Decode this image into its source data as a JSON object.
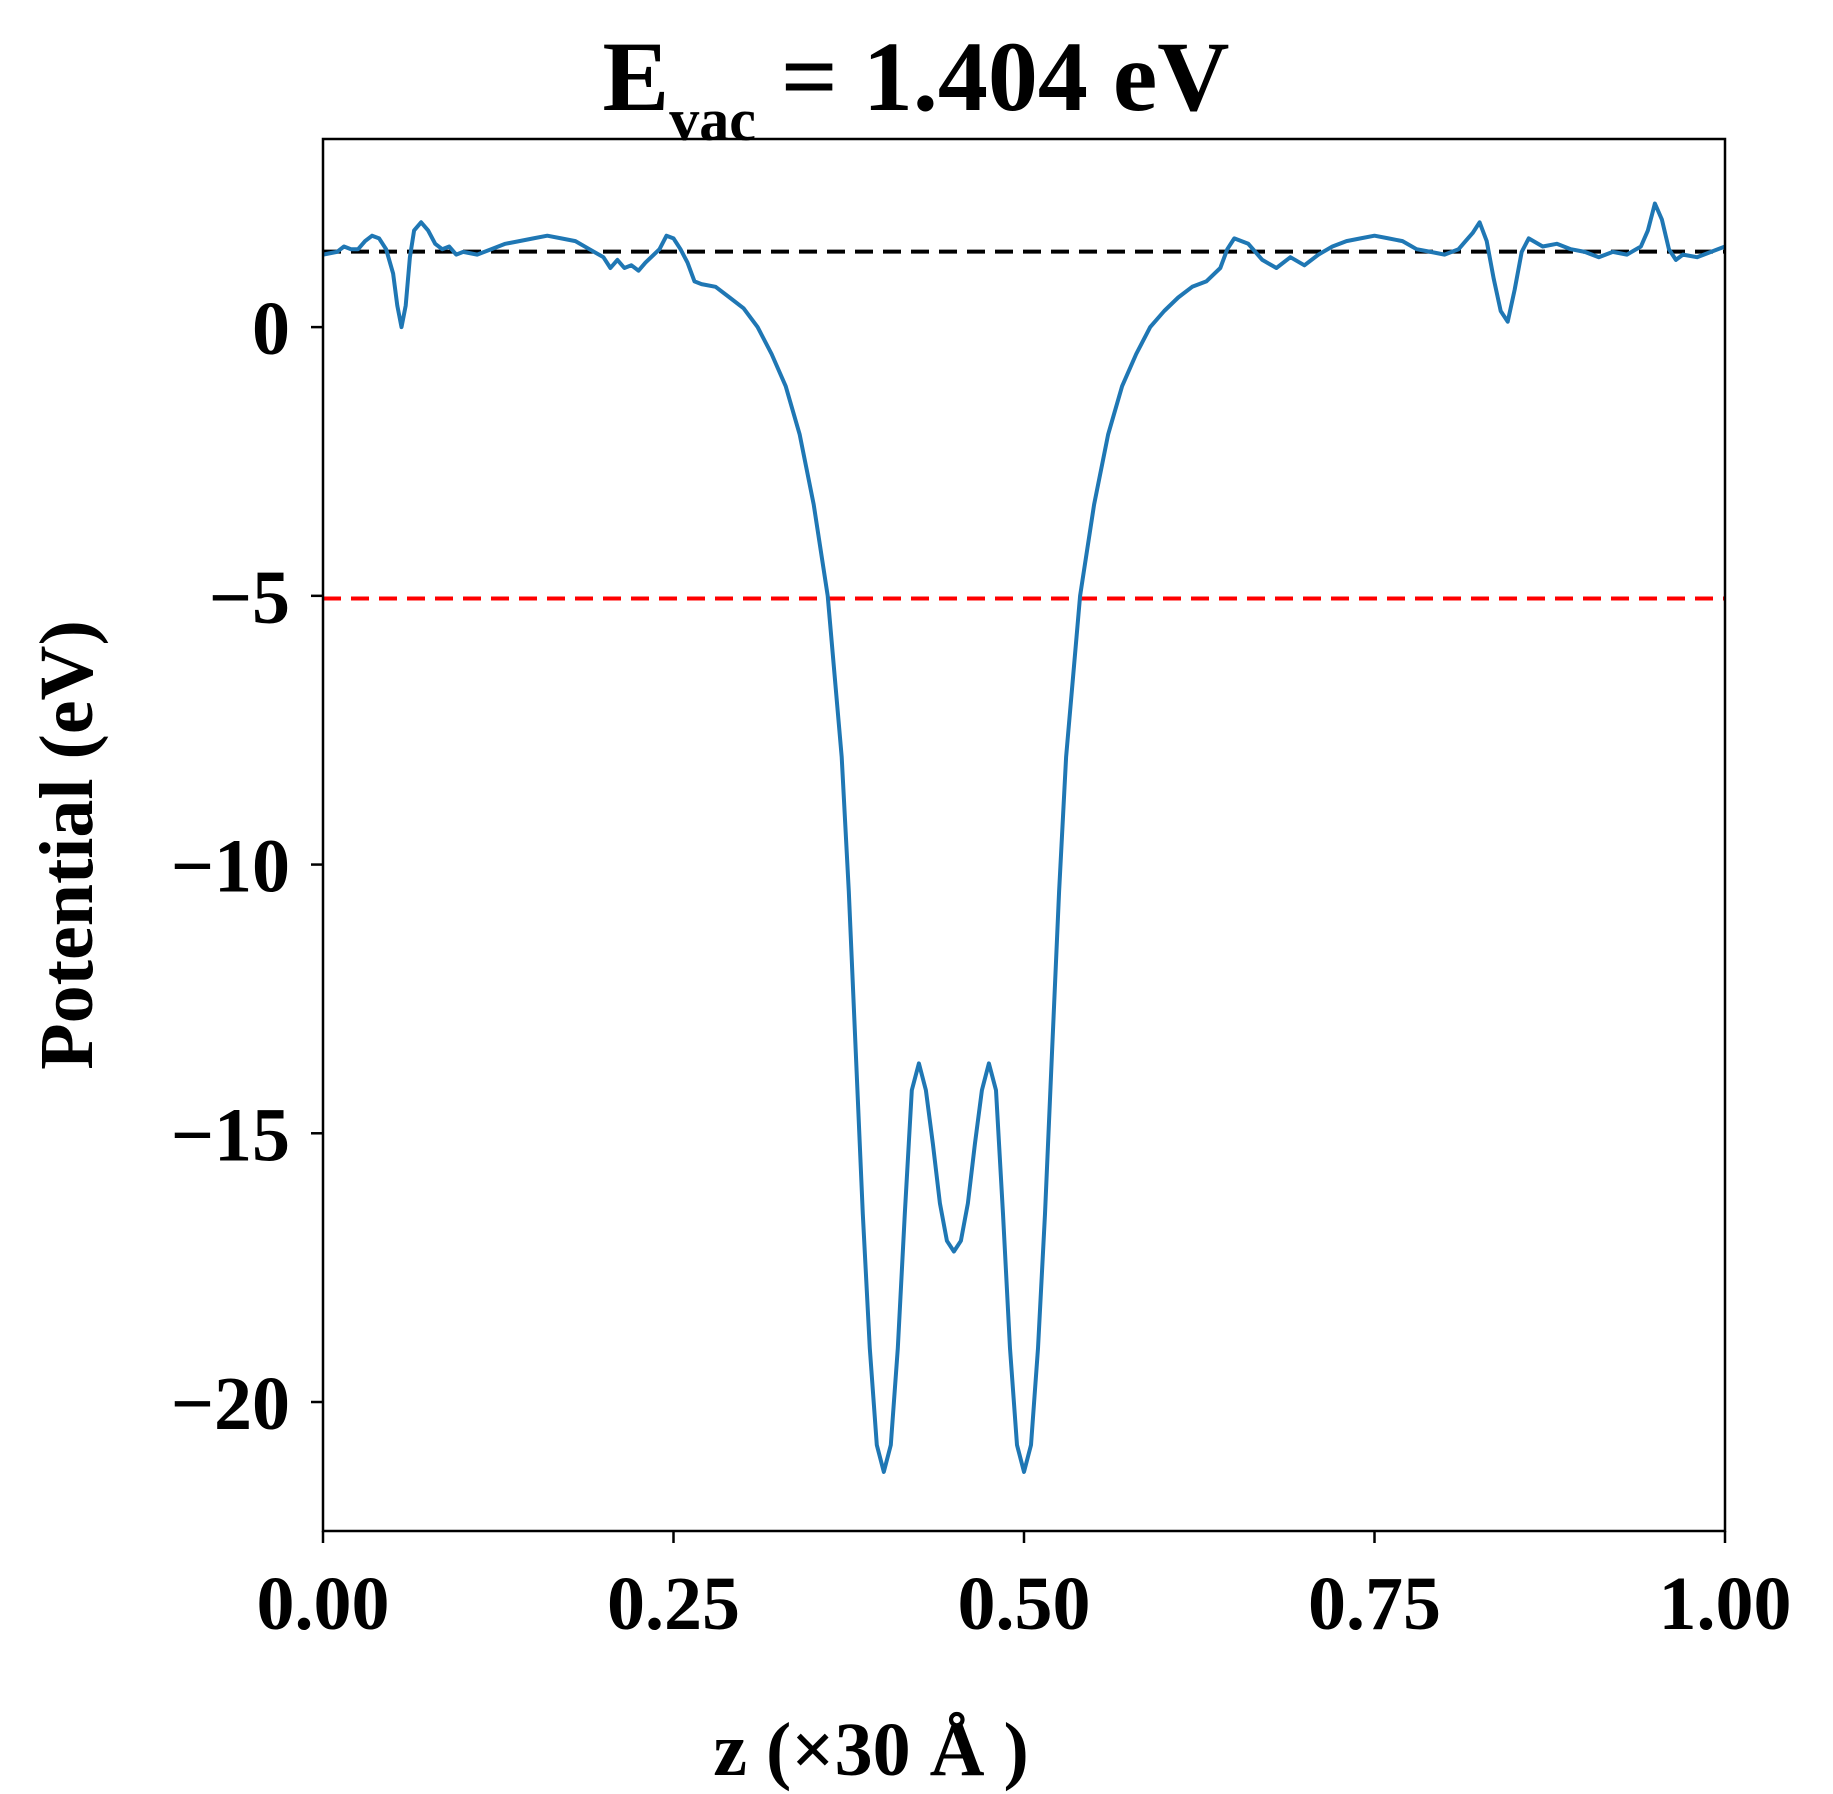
{
  "chart_data": {
    "type": "line",
    "title_prefix": "E",
    "title_subscript": "vac",
    "title_suffix": " = 1.404 eV",
    "xlabel": "z (×30 Å )",
    "ylabel": "Potential (eV)",
    "xlim": [
      0.0,
      1.0
    ],
    "ylim": [
      -22.4,
      3.5
    ],
    "xticks": [
      {
        "value": 0.0,
        "label": "0.00"
      },
      {
        "value": 0.25,
        "label": "0.25"
      },
      {
        "value": 0.5,
        "label": "0.50"
      },
      {
        "value": 0.75,
        "label": "0.75"
      },
      {
        "value": 1.0,
        "label": "1.00"
      }
    ],
    "yticks": [
      {
        "value": 0,
        "label": "0"
      },
      {
        "value": -5,
        "label": "−5"
      },
      {
        "value": -10,
        "label": "−10"
      },
      {
        "value": -15,
        "label": "−15"
      },
      {
        "value": -20,
        "label": "−20"
      }
    ],
    "grid": false,
    "reference_lines": [
      {
        "y": 1.404,
        "color": "#000000",
        "style": "dashed"
      },
      {
        "y": -5.05,
        "color": "#ff0000",
        "style": "dashed"
      }
    ],
    "series": [
      {
        "color": "#1f77b4",
        "points": [
          [
            0.0,
            1.35
          ],
          [
            0.01,
            1.4
          ],
          [
            0.015,
            1.5
          ],
          [
            0.02,
            1.45
          ],
          [
            0.025,
            1.45
          ],
          [
            0.03,
            1.6
          ],
          [
            0.035,
            1.7
          ],
          [
            0.04,
            1.65
          ],
          [
            0.045,
            1.45
          ],
          [
            0.05,
            1.0
          ],
          [
            0.053,
            0.4
          ],
          [
            0.056,
            0.0
          ],
          [
            0.059,
            0.4
          ],
          [
            0.062,
            1.3
          ],
          [
            0.065,
            1.8
          ],
          [
            0.07,
            1.95
          ],
          [
            0.075,
            1.8
          ],
          [
            0.08,
            1.55
          ],
          [
            0.085,
            1.45
          ],
          [
            0.09,
            1.5
          ],
          [
            0.095,
            1.35
          ],
          [
            0.1,
            1.4
          ],
          [
            0.11,
            1.35
          ],
          [
            0.12,
            1.45
          ],
          [
            0.13,
            1.55
          ],
          [
            0.14,
            1.6
          ],
          [
            0.15,
            1.65
          ],
          [
            0.16,
            1.7
          ],
          [
            0.17,
            1.65
          ],
          [
            0.18,
            1.6
          ],
          [
            0.19,
            1.45
          ],
          [
            0.2,
            1.3
          ],
          [
            0.205,
            1.1
          ],
          [
            0.21,
            1.25
          ],
          [
            0.215,
            1.1
          ],
          [
            0.22,
            1.15
          ],
          [
            0.225,
            1.05
          ],
          [
            0.23,
            1.2
          ],
          [
            0.24,
            1.45
          ],
          [
            0.245,
            1.7
          ],
          [
            0.25,
            1.65
          ],
          [
            0.255,
            1.45
          ],
          [
            0.26,
            1.2
          ],
          [
            0.265,
            0.85
          ],
          [
            0.27,
            0.8
          ],
          [
            0.28,
            0.75
          ],
          [
            0.29,
            0.55
          ],
          [
            0.3,
            0.35
          ],
          [
            0.31,
            0.0
          ],
          [
            0.32,
            -0.5
          ],
          [
            0.33,
            -1.1
          ],
          [
            0.34,
            -2.0
          ],
          [
            0.35,
            -3.3
          ],
          [
            0.36,
            -5.0
          ],
          [
            0.37,
            -8.0
          ],
          [
            0.375,
            -10.5
          ],
          [
            0.38,
            -13.5
          ],
          [
            0.385,
            -16.5
          ],
          [
            0.39,
            -19.0
          ],
          [
            0.395,
            -20.8
          ],
          [
            0.4,
            -21.3
          ],
          [
            0.405,
            -20.8
          ],
          [
            0.41,
            -19.0
          ],
          [
            0.415,
            -16.5
          ],
          [
            0.42,
            -14.2
          ],
          [
            0.425,
            -13.7
          ],
          [
            0.43,
            -14.2
          ],
          [
            0.435,
            -15.2
          ],
          [
            0.44,
            -16.3
          ],
          [
            0.445,
            -17.0
          ],
          [
            0.45,
            -17.2
          ],
          [
            0.455,
            -17.0
          ],
          [
            0.46,
            -16.3
          ],
          [
            0.465,
            -15.2
          ],
          [
            0.47,
            -14.2
          ],
          [
            0.475,
            -13.7
          ],
          [
            0.48,
            -14.2
          ],
          [
            0.485,
            -16.5
          ],
          [
            0.49,
            -19.0
          ],
          [
            0.495,
            -20.8
          ],
          [
            0.5,
            -21.3
          ],
          [
            0.505,
            -20.8
          ],
          [
            0.51,
            -19.0
          ],
          [
            0.515,
            -16.5
          ],
          [
            0.52,
            -13.5
          ],
          [
            0.525,
            -10.5
          ],
          [
            0.53,
            -8.0
          ],
          [
            0.54,
            -5.0
          ],
          [
            0.55,
            -3.3
          ],
          [
            0.56,
            -2.0
          ],
          [
            0.57,
            -1.1
          ],
          [
            0.58,
            -0.5
          ],
          [
            0.59,
            0.0
          ],
          [
            0.6,
            0.3
          ],
          [
            0.61,
            0.55
          ],
          [
            0.62,
            0.75
          ],
          [
            0.63,
            0.85
          ],
          [
            0.64,
            1.1
          ],
          [
            0.645,
            1.45
          ],
          [
            0.65,
            1.65
          ],
          [
            0.66,
            1.55
          ],
          [
            0.67,
            1.25
          ],
          [
            0.68,
            1.1
          ],
          [
            0.69,
            1.3
          ],
          [
            0.7,
            1.15
          ],
          [
            0.71,
            1.35
          ],
          [
            0.72,
            1.5
          ],
          [
            0.73,
            1.6
          ],
          [
            0.74,
            1.65
          ],
          [
            0.75,
            1.7
          ],
          [
            0.76,
            1.65
          ],
          [
            0.77,
            1.6
          ],
          [
            0.78,
            1.45
          ],
          [
            0.79,
            1.4
          ],
          [
            0.8,
            1.35
          ],
          [
            0.81,
            1.45
          ],
          [
            0.815,
            1.6
          ],
          [
            0.82,
            1.75
          ],
          [
            0.825,
            1.95
          ],
          [
            0.83,
            1.6
          ],
          [
            0.835,
            0.9
          ],
          [
            0.84,
            0.3
          ],
          [
            0.845,
            0.1
          ],
          [
            0.85,
            0.7
          ],
          [
            0.855,
            1.4
          ],
          [
            0.86,
            1.65
          ],
          [
            0.87,
            1.5
          ],
          [
            0.88,
            1.55
          ],
          [
            0.89,
            1.45
          ],
          [
            0.9,
            1.4
          ],
          [
            0.91,
            1.3
          ],
          [
            0.92,
            1.4
          ],
          [
            0.93,
            1.35
          ],
          [
            0.94,
            1.5
          ],
          [
            0.945,
            1.8
          ],
          [
            0.95,
            2.3
          ],
          [
            0.955,
            2.0
          ],
          [
            0.96,
            1.45
          ],
          [
            0.965,
            1.25
          ],
          [
            0.97,
            1.35
          ],
          [
            0.98,
            1.3
          ],
          [
            0.99,
            1.4
          ],
          [
            1.0,
            1.5
          ]
        ]
      }
    ]
  }
}
